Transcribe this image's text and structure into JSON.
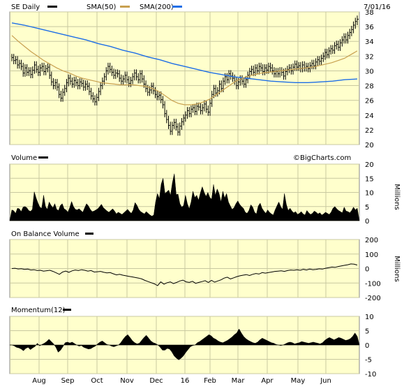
{
  "colors": {
    "plot_bg": "#ffffcc",
    "sma50": "#c8a050",
    "sma200": "#1e6ee6",
    "price": "#000000"
  },
  "header": {
    "ticker_label": "SE Daily",
    "sma50_label": "SMA(50)",
    "sma200_label": "SMA(200)",
    "date": "7/01/16",
    "copyright": "©BigCharts.com"
  },
  "x_axis": {
    "labels": [
      "Aug",
      "Sep",
      "Oct",
      "Nov",
      "Dec",
      "16",
      "Feb",
      "Mar",
      "Apr",
      "May",
      "Jun"
    ]
  },
  "chart_data": [
    {
      "type": "line",
      "panel": "price",
      "title": "SE Daily",
      "ylim": [
        20,
        38
      ],
      "yticks": [
        20,
        22,
        24,
        26,
        28,
        30,
        32,
        34,
        36,
        38
      ],
      "grid": true,
      "series": [
        {
          "name": "SE Daily",
          "style": "ohlc-bars",
          "values": [
            31.8,
            31.4,
            31.5,
            30.8,
            31.0,
            30.6,
            29.7,
            30.4,
            29.8,
            30.0,
            29.5,
            30.1,
            30.8,
            30.2,
            29.8,
            30.4,
            30.6,
            29.9,
            30.3,
            30.5,
            29.4,
            28.5,
            28.0,
            28.4,
            27.8,
            26.8,
            26.3,
            27.1,
            27.6,
            28.4,
            29.0,
            28.6,
            28.2,
            28.7,
            28.4,
            28.0,
            28.5,
            28.3,
            27.8,
            28.2,
            27.9,
            27.2,
            26.6,
            26.2,
            25.8,
            26.4,
            27.2,
            28.0,
            28.6,
            29.2,
            30.0,
            30.6,
            30.2,
            29.8,
            29.4,
            29.7,
            29.6,
            29.0,
            28.6,
            28.9,
            29.4,
            28.8,
            28.3,
            28.7,
            29.2,
            29.7,
            29.2,
            28.8,
            29.6,
            28.9,
            28.2,
            27.6,
            27.1,
            27.4,
            27.9,
            27.3,
            26.8,
            26.5,
            26.7,
            26.1,
            25.4,
            24.2,
            23.4,
            22.6,
            21.8,
            22.6,
            23.0,
            22.4,
            21.7,
            22.5,
            23.1,
            23.6,
            24.0,
            24.6,
            24.2,
            24.8,
            25.0,
            24.5,
            25.2,
            25.1,
            24.6,
            25.0,
            25.5,
            24.8,
            24.4,
            25.6,
            26.8,
            27.6,
            27.0,
            27.3,
            28.2,
            27.6,
            28.6,
            29.2,
            28.8,
            29.6,
            29.3,
            29.0,
            28.6,
            28.0,
            28.5,
            28.9,
            28.6,
            28.2,
            28.8,
            29.4,
            29.9,
            30.2,
            29.8,
            30.4,
            30.0,
            30.6,
            30.4,
            29.9,
            30.4,
            30.1,
            30.6,
            30.4,
            30.0,
            29.6,
            29.9,
            29.6,
            30.0,
            29.8,
            29.3,
            29.9,
            30.2,
            30.4,
            30.0,
            30.5,
            30.9,
            30.5,
            30.7,
            30.3,
            30.8,
            30.4,
            30.6,
            30.3,
            30.7,
            31.0,
            30.7,
            31.2,
            31.5,
            31.3,
            31.7,
            32.0,
            32.5,
            32.2,
            32.7,
            33.0,
            32.8,
            33.4,
            33.6,
            33.2,
            33.8,
            34.2,
            34.6,
            34.2,
            34.8,
            35.2,
            35.6,
            36.2,
            36.7,
            37.0
          ]
        },
        {
          "name": "SMA(50)",
          "values": [
            34.8,
            34.0,
            33.3,
            32.6,
            32.0,
            31.4,
            30.9,
            30.4,
            30.0,
            29.7,
            29.3,
            29.0,
            28.8,
            28.6,
            28.4,
            28.3,
            28.2,
            28.1,
            28.1,
            28.1,
            28.0,
            27.9,
            27.6,
            27.2,
            26.6,
            26.0,
            25.6,
            25.4,
            25.4,
            25.5,
            25.8,
            26.2,
            26.8,
            27.4,
            28.0,
            28.6,
            29.0,
            29.3,
            29.5,
            29.7,
            29.8,
            29.9,
            30.0,
            30.1,
            30.2,
            30.3,
            30.4,
            30.5,
            30.7,
            30.9,
            31.1,
            31.4,
            31.7,
            32.2,
            32.7
          ]
        },
        {
          "name": "SMA(200)",
          "values": [
            36.5,
            36.2,
            35.8,
            35.4,
            35.0,
            34.6,
            34.2,
            33.7,
            33.3,
            32.8,
            32.4,
            31.9,
            31.5,
            31.0,
            30.6,
            30.2,
            29.8,
            29.5,
            29.2,
            29.0,
            28.8,
            28.6,
            28.5,
            28.4,
            28.4,
            28.5,
            28.6,
            28.8,
            28.9
          ]
        }
      ]
    },
    {
      "type": "area",
      "panel": "volume",
      "title": "Volume",
      "ylabel": "Millions",
      "ylim": [
        0,
        20
      ],
      "yticks": [
        0,
        5,
        10,
        15,
        20
      ],
      "values": [
        3.8,
        3.5,
        2.6,
        4.4,
        4.2,
        3.2,
        4.8,
        5.0,
        4.6,
        3.6,
        3.3,
        4.0,
        10.2,
        8.0,
        6.2,
        4.8,
        4.4,
        9.0,
        5.0,
        4.0,
        6.6,
        5.4,
        4.6,
        6.0,
        4.0,
        3.6,
        5.4,
        6.0,
        4.2,
        3.8,
        3.0,
        4.6,
        6.8,
        5.0,
        4.0,
        3.8,
        4.2,
        3.6,
        3.0,
        4.6,
        6.0,
        5.2,
        4.0,
        3.2,
        3.4,
        3.8,
        4.2,
        5.0,
        5.8,
        4.6,
        4.0,
        3.4,
        3.0,
        3.6,
        4.2,
        3.4,
        2.4,
        3.0,
        2.6,
        2.2,
        2.8,
        3.4,
        4.0,
        3.2,
        2.6,
        3.8,
        6.4,
        5.4,
        4.0,
        3.2,
        2.8,
        2.4,
        3.2,
        2.6,
        2.0,
        1.6,
        2.0,
        6.6,
        9.6,
        7.8,
        13.0,
        15.0,
        9.6,
        10.2,
        10.8,
        9.0,
        13.4,
        16.6,
        9.2,
        9.4,
        6.0,
        4.8,
        5.4,
        9.0,
        6.0,
        4.2,
        6.6,
        10.4,
        8.2,
        9.0,
        7.2,
        9.8,
        12.0,
        10.0,
        8.6,
        10.0,
        8.2,
        7.6,
        12.8,
        9.0,
        11.2,
        9.6,
        6.6,
        10.4,
        8.0,
        9.6,
        6.6,
        5.2,
        4.0,
        4.6,
        6.0,
        7.0,
        5.8,
        5.0,
        4.4,
        3.0,
        2.6,
        3.6,
        5.6,
        4.8,
        3.0,
        2.4,
        5.2,
        6.2,
        4.4,
        3.4,
        2.6,
        3.8,
        3.0,
        2.4,
        2.0,
        3.8,
        5.2,
        6.6,
        5.0,
        4.0,
        9.6,
        5.8,
        3.6,
        4.4,
        3.4,
        2.8,
        3.2,
        2.2,
        2.6,
        3.2,
        2.4,
        2.0,
        3.6,
        2.8,
        2.2,
        2.6,
        3.4,
        3.0,
        2.4,
        2.8,
        2.0,
        2.4,
        3.0,
        2.6,
        2.2,
        3.0,
        4.4,
        5.0,
        4.2,
        3.6,
        3.2,
        2.8,
        4.8,
        3.4,
        3.2,
        2.8,
        3.6,
        4.8,
        3.8,
        4.4
      ]
    },
    {
      "type": "line",
      "panel": "obv",
      "title": "On Balance Volume",
      "ylabel": "Millions",
      "ylim": [
        -200,
        200
      ],
      "yticks": [
        -200,
        -100,
        0,
        100,
        200
      ],
      "values": [
        0,
        2,
        -3,
        -1,
        -6,
        -4,
        -10,
        -8,
        -14,
        -12,
        -18,
        -15,
        -12,
        -20,
        -30,
        -40,
        -24,
        -18,
        -26,
        -16,
        -10,
        -14,
        -8,
        -12,
        -18,
        -14,
        -24,
        -22,
        -20,
        -26,
        -30,
        -28,
        -36,
        -44,
        -40,
        -46,
        -50,
        -54,
        -58,
        -62,
        -66,
        -72,
        -82,
        -90,
        -98,
        -106,
        -118,
        -92,
        -108,
        -98,
        -92,
        -104,
        -96,
        -86,
        -80,
        -92,
        -96,
        -88,
        -102,
        -96,
        -90,
        -84,
        -96,
        -82,
        -94,
        -86,
        -78,
        -66,
        -60,
        -72,
        -64,
        -56,
        -50,
        -46,
        -42,
        -48,
        -40,
        -34,
        -38,
        -28,
        -32,
        -28,
        -24,
        -20,
        -18,
        -16,
        -20,
        -14,
        -10,
        -12,
        -8,
        -12,
        -6,
        -10,
        -4,
        -8,
        -6,
        -2,
        -4,
        2,
        6,
        10,
        8,
        14,
        18,
        22,
        26,
        32,
        30,
        24
      ]
    },
    {
      "type": "area",
      "panel": "momentum",
      "title": "Momentum(12)",
      "ylim": [
        -10,
        10
      ],
      "yticks": [
        -10,
        -5,
        0,
        5,
        10
      ],
      "values": [
        0.0,
        -0.3,
        -0.8,
        -1.0,
        -1.4,
        -2.0,
        -1.2,
        -0.8,
        -1.6,
        -1.0,
        -0.5,
        0.6,
        -0.3,
        0.2,
        0.6,
        1.2,
        2.0,
        1.2,
        0.4,
        -0.8,
        -2.5,
        -1.8,
        -0.6,
        0.8,
        1.0,
        0.7,
        1.0,
        0.5,
        0.0,
        -0.4,
        -0.2,
        -0.8,
        -1.1,
        -1.4,
        -1.3,
        -0.8,
        -0.4,
        0.4,
        1.0,
        1.4,
        0.8,
        0.2,
        0.0,
        -0.4,
        -0.6,
        -0.3,
        0.0,
        0.8,
        2.0,
        3.0,
        3.6,
        2.6,
        1.5,
        0.8,
        0.4,
        0.6,
        1.6,
        2.6,
        3.4,
        2.4,
        1.4,
        0.8,
        0.5,
        0.0,
        -0.8,
        -1.8,
        -1.8,
        -1.2,
        -1.4,
        -2.4,
        -3.8,
        -4.6,
        -5.2,
        -4.6,
        -3.8,
        -2.6,
        -1.6,
        -0.6,
        -0.2,
        0.0,
        0.8,
        1.2,
        1.8,
        2.4,
        3.0,
        3.6,
        3.2,
        2.4,
        2.0,
        1.4,
        1.0,
        0.8,
        1.2,
        1.6,
        2.2,
        2.8,
        3.6,
        4.2,
        5.6,
        4.2,
        3.0,
        2.2,
        1.6,
        1.2,
        0.8,
        0.6,
        1.0,
        1.8,
        2.4,
        2.0,
        1.6,
        1.2,
        0.8,
        0.6,
        0.2,
        0.0,
        -0.2,
        0.0,
        0.4,
        0.8,
        1.0,
        0.8,
        0.4,
        0.6,
        0.8,
        1.2,
        1.0,
        0.8,
        0.6,
        0.8,
        1.0,
        0.8,
        0.6,
        0.4,
        0.8,
        1.6,
        2.2,
        2.6,
        2.2,
        1.8,
        2.2,
        2.6,
        2.4,
        2.0,
        1.6,
        1.8,
        2.2,
        3.0,
        4.2,
        3.0
      ]
    }
  ]
}
